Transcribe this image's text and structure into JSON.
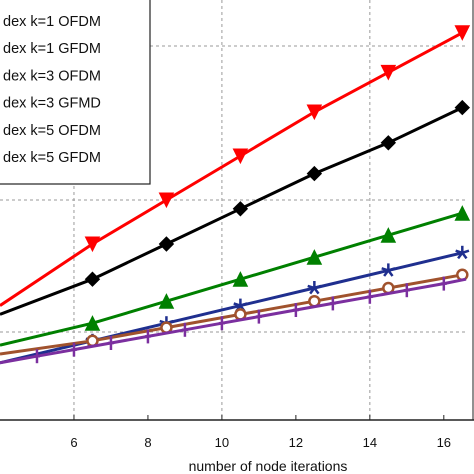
{
  "chart_data": {
    "type": "line",
    "title": "",
    "xlabel": "number of node iterations",
    "ylabel": "",
    "xlim": [
      4,
      16.6
    ],
    "ylim": [
      0,
      1
    ],
    "x_ticks": [
      "6",
      "8",
      "10",
      "12",
      "14",
      "16"
    ],
    "grid": true,
    "legend_position": "top-left",
    "series": [
      {
        "name": "dex k=1 OFDM",
        "color": "#ff0000",
        "marker": "triangle-down",
        "x": [
          4,
          6.5,
          8.5,
          10.5,
          12.5,
          14.5,
          16.5
        ],
        "y": [
          0.26,
          0.4,
          0.5,
          0.6,
          0.7,
          0.79,
          0.88
        ]
      },
      {
        "name": "dex k=1 GFDM",
        "color": "#000000",
        "marker": "diamond",
        "x": [
          4,
          6.5,
          8.5,
          10.5,
          12.5,
          14.5,
          16.5
        ],
        "y": [
          0.24,
          0.32,
          0.4,
          0.48,
          0.56,
          0.63,
          0.71
        ]
      },
      {
        "name": "dex k=3 OFDM",
        "color": "#008000",
        "marker": "triangle-up",
        "x": [
          4,
          6.5,
          8.5,
          10.5,
          12.5,
          14.5,
          16.5
        ],
        "y": [
          0.17,
          0.22,
          0.27,
          0.32,
          0.37,
          0.42,
          0.47
        ]
      },
      {
        "name": "dex k=3 GFMD",
        "color": "#1f2f8f",
        "marker": "star",
        "x": [
          4,
          6.5,
          8.5,
          10.5,
          12.5,
          14.5,
          16.5
        ],
        "y": [
          0.13,
          0.18,
          0.22,
          0.26,
          0.3,
          0.34,
          0.38
        ]
      },
      {
        "name": "dex k=5 OFDM",
        "color": "#a0522d",
        "marker": "circle",
        "x": [
          4,
          6.5,
          8.5,
          10.5,
          12.5,
          14.5,
          16.5
        ],
        "y": [
          0.15,
          0.18,
          0.21,
          0.24,
          0.27,
          0.3,
          0.33
        ]
      },
      {
        "name": "dex k=5 GFDM",
        "color": "#7b2f9f",
        "marker": "plus",
        "x": [
          4,
          5,
          6,
          7,
          8,
          9,
          10,
          11,
          12,
          13,
          14,
          15,
          16,
          16.6
        ],
        "y": [
          0.13,
          0.145,
          0.16,
          0.175,
          0.19,
          0.205,
          0.22,
          0.235,
          0.25,
          0.265,
          0.28,
          0.295,
          0.31,
          0.32
        ]
      }
    ]
  }
}
